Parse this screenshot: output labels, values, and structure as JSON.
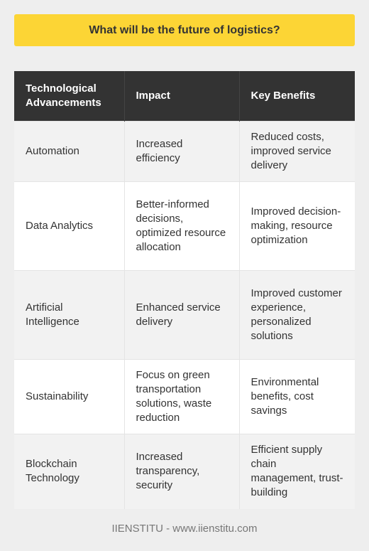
{
  "title": "What will be the future of logistics?",
  "table": {
    "headers": [
      "Technological Advancements",
      "Impact",
      "Key Benefits"
    ],
    "rows": [
      [
        "Automation",
        "Increased efficiency",
        "Reduced costs, improved service delivery"
      ],
      [
        "Data Analytics",
        "Better-informed decisions, optimized resource allocation",
        "Improved decision-making, resource optimization"
      ],
      [
        "Artificial Intelligence",
        "Enhanced service delivery",
        "Improved customer experience, personalized solutions"
      ],
      [
        "Sustainability",
        "Focus on green transportation solutions, waste reduction",
        "Environmental benefits, cost savings"
      ],
      [
        "Blockchain Technology",
        "Increased transparency, security",
        "Efficient supply chain management, trust-building"
      ]
    ]
  },
  "footer": "IIENSTITU - www.iienstitu.com",
  "colors": {
    "title_background": "#fcd535",
    "header_background": "#333333",
    "row_alt_background": "#f2f2f2"
  }
}
